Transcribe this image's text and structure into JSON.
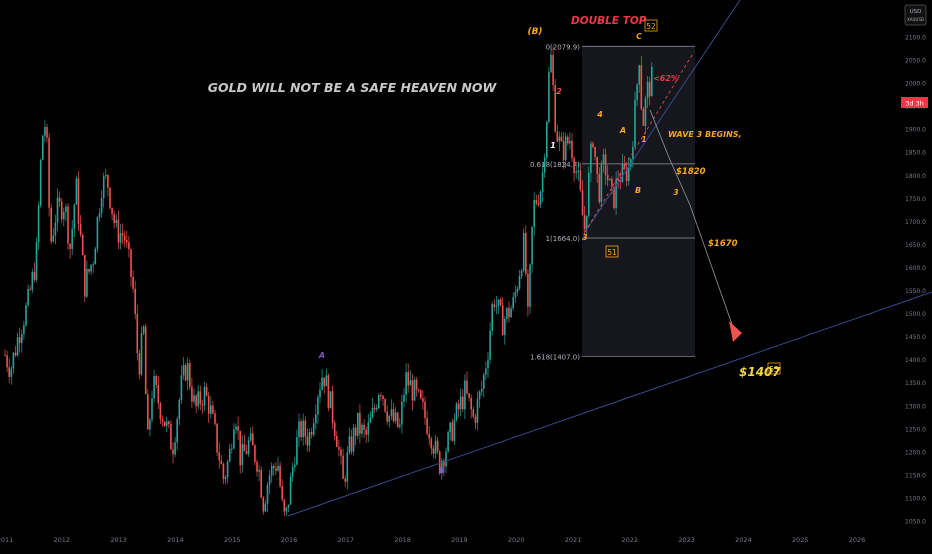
{
  "chart_data": {
    "type": "candlestick",
    "title": "GOLD WILL NOT BE A SAFE HEAVEN NOW",
    "currency": "USD",
    "currency_sub": "XAUUSD",
    "price_label": "3d 3h",
    "ylim": [
      1030,
      2150
    ],
    "x_range": [
      2011.0,
      2026.9
    ],
    "y_ticks": [
      "1050.0",
      "1100.0",
      "1150.0",
      "1200.0",
      "1250.0",
      "1300.0",
      "1350.0",
      "1400.0",
      "1450.0",
      "1500.0",
      "1550.0",
      "1600.0",
      "1650.0",
      "1700.0",
      "1750.0",
      "1800.0",
      "1850.0",
      "1900.0",
      "1950.0",
      "2000.0",
      "2050.0",
      "2100.0"
    ],
    "x_ticks": [
      "2011",
      "2012",
      "2013",
      "2014",
      "2015",
      "2016",
      "2017",
      "2018",
      "2019",
      "2020",
      "2021",
      "2022",
      "2023",
      "2024",
      "2025",
      "2026"
    ],
    "price_path": [
      [
        2011.0,
        1410
      ],
      [
        2011.1,
        1380
      ],
      [
        2011.25,
        1460
      ],
      [
        2011.4,
        1520
      ],
      [
        2011.55,
        1620
      ],
      [
        2011.65,
        1880
      ],
      [
        2011.72,
        1920
      ],
      [
        2011.8,
        1650
      ],
      [
        2011.9,
        1720
      ],
      [
        2012.05,
        1740
      ],
      [
        2012.15,
        1640
      ],
      [
        2012.25,
        1780
      ],
      [
        2012.4,
        1560
      ],
      [
        2012.55,
        1620
      ],
      [
        2012.7,
        1780
      ],
      [
        2012.8,
        1790
      ],
      [
        2012.95,
        1680
      ],
      [
        2013.1,
        1670
      ],
      [
        2013.25,
        1560
      ],
      [
        2013.35,
        1380
      ],
      [
        2013.45,
        1470
      ],
      [
        2013.5,
        1200
      ],
      [
        2013.6,
        1350
      ],
      [
        2013.75,
        1290
      ],
      [
        2013.95,
        1210
      ],
      [
        2014.1,
        1340
      ],
      [
        2014.2,
        1390
      ],
      [
        2014.35,
        1290
      ],
      [
        2014.5,
        1330
      ],
      [
        2014.6,
        1300
      ],
      [
        2014.85,
        1140
      ],
      [
        2014.95,
        1190
      ],
      [
        2015.05,
        1300
      ],
      [
        2015.15,
        1180
      ],
      [
        2015.3,
        1220
      ],
      [
        2015.45,
        1180
      ],
      [
        2015.55,
        1090
      ],
      [
        2015.65,
        1150
      ],
      [
        2015.8,
        1180
      ],
      [
        2015.9,
        1055
      ],
      [
        2015.95,
        1060
      ],
      [
        2016.1,
        1200
      ],
      [
        2016.2,
        1250
      ],
      [
        2016.35,
        1230
      ],
      [
        2016.5,
        1330
      ],
      [
        2016.6,
        1375
      ],
      [
        2016.7,
        1320
      ],
      [
        2016.85,
        1230
      ],
      [
        2016.95,
        1130
      ],
      [
        2017.05,
        1200
      ],
      [
        2017.2,
        1260
      ],
      [
        2017.35,
        1230
      ],
      [
        2017.5,
        1290
      ],
      [
        2017.6,
        1350
      ],
      [
        2017.75,
        1280
      ],
      [
        2017.95,
        1250
      ],
      [
        2018.05,
        1360
      ],
      [
        2018.2,
        1330
      ],
      [
        2018.35,
        1290
      ],
      [
        2018.5,
        1240
      ],
      [
        2018.6,
        1190
      ],
      [
        2018.65,
        1175
      ],
      [
        2018.8,
        1220
      ],
      [
        2018.95,
        1280
      ],
      [
        2019.1,
        1330
      ],
      [
        2019.25,
        1270
      ],
      [
        2019.4,
        1340
      ],
      [
        2019.5,
        1420
      ],
      [
        2019.6,
        1540
      ],
      [
        2019.75,
        1480
      ],
      [
        2019.95,
        1520
      ],
      [
        2020.05,
        1590
      ],
      [
        2020.15,
        1660
      ],
      [
        2020.2,
        1470
      ],
      [
        2020.3,
        1730
      ],
      [
        2020.45,
        1780
      ],
      [
        2020.55,
        1950
      ],
      [
        2020.6,
        2075
      ],
      [
        2020.7,
        1900
      ],
      [
        2020.8,
        1850
      ],
      [
        2020.95,
        1880
      ],
      [
        2021.1,
        1780
      ],
      [
        2021.2,
        1680
      ],
      [
        2021.35,
        1890
      ],
      [
        2021.45,
        1760
      ],
      [
        2021.55,
        1830
      ],
      [
        2021.7,
        1740
      ],
      [
        2021.8,
        1800
      ],
      [
        2021.9,
        1800
      ],
      [
        2022.0,
        1820
      ],
      [
        2022.1,
        1950
      ],
      [
        2022.17,
        2070
      ],
      [
        2022.22,
        1900
      ],
      [
        2022.3,
        1980
      ],
      [
        2022.4,
        2010
      ]
    ],
    "fib_levels": [
      {
        "label": "0(2079.9)",
        "value": 2079.9
      },
      {
        "label": "0.618(1824.7)",
        "value": 1824.7
      },
      {
        "label": "1(1664.0)",
        "value": 1664.0
      },
      {
        "label": "1.618(1407.0)",
        "value": 1407.0
      }
    ],
    "annotations": {
      "double_top": "DOUBLE TOP",
      "box_52": "52",
      "box_51": "51",
      "box_53": "53",
      "wave_b_paren": "(B)",
      "wave_c": "C",
      "pct_62": "<62%",
      "wave3_begins": "WAVE 3 BEGINS,",
      "target_1820": "$1820",
      "target_1670": "$1670",
      "target_1407": "$1407",
      "wave_3a": "3",
      "wave_3b": "3",
      "wave_1a": "1",
      "wave_1b": "1",
      "wave_2": "2",
      "wave_4": "4",
      "wave_a_orange": "A",
      "wave_b_orange": "B",
      "wave_a_blue": "A",
      "wave_b_blue": "B"
    }
  },
  "colors": {
    "background": "#000000",
    "up": "#26a69a",
    "down": "#ef5350",
    "axis_text": "#787b86",
    "title": "#c8c8c8",
    "orange": "#f7a620",
    "red_label": "#f23645",
    "blue_label": "#7e57c2",
    "trendline": "#3a4a8c",
    "target": "#f5d742"
  }
}
